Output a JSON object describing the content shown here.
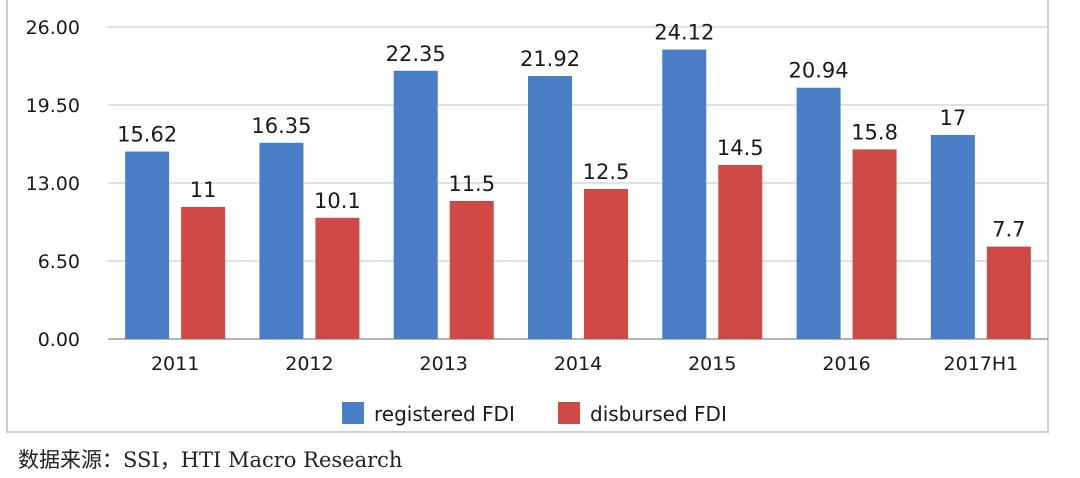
{
  "chart_data": {
    "type": "bar",
    "title": "",
    "xlabel": "",
    "ylabel": "",
    "categories": [
      "2011",
      "2012",
      "2013",
      "2014",
      "2015",
      "2016",
      "2017H1"
    ],
    "series": [
      {
        "name": "registered FDI",
        "color": "#4a7ec6",
        "values": [
          15.62,
          16.35,
          22.35,
          21.92,
          24.12,
          20.94,
          17
        ],
        "labels": [
          "15.62",
          "16.35",
          "22.35",
          "21.92",
          "24.12",
          "20.94",
          "17"
        ]
      },
      {
        "name": "disbursed FDI",
        "color": "#cf4947",
        "values": [
          11,
          10.1,
          11.5,
          12.5,
          14.5,
          15.8,
          7.7
        ],
        "labels": [
          "11",
          "10.1",
          "11.5",
          "12.5",
          "14.5",
          "15.8",
          "7.7"
        ]
      }
    ],
    "yticks": [
      "0.00",
      "6.50",
      "13.00",
      "19.50",
      "26.00"
    ],
    "ylim": [
      0,
      26
    ],
    "grid": true,
    "legend": "bottom-center"
  },
  "source": "数据来源：SSI，HTI Macro Research"
}
